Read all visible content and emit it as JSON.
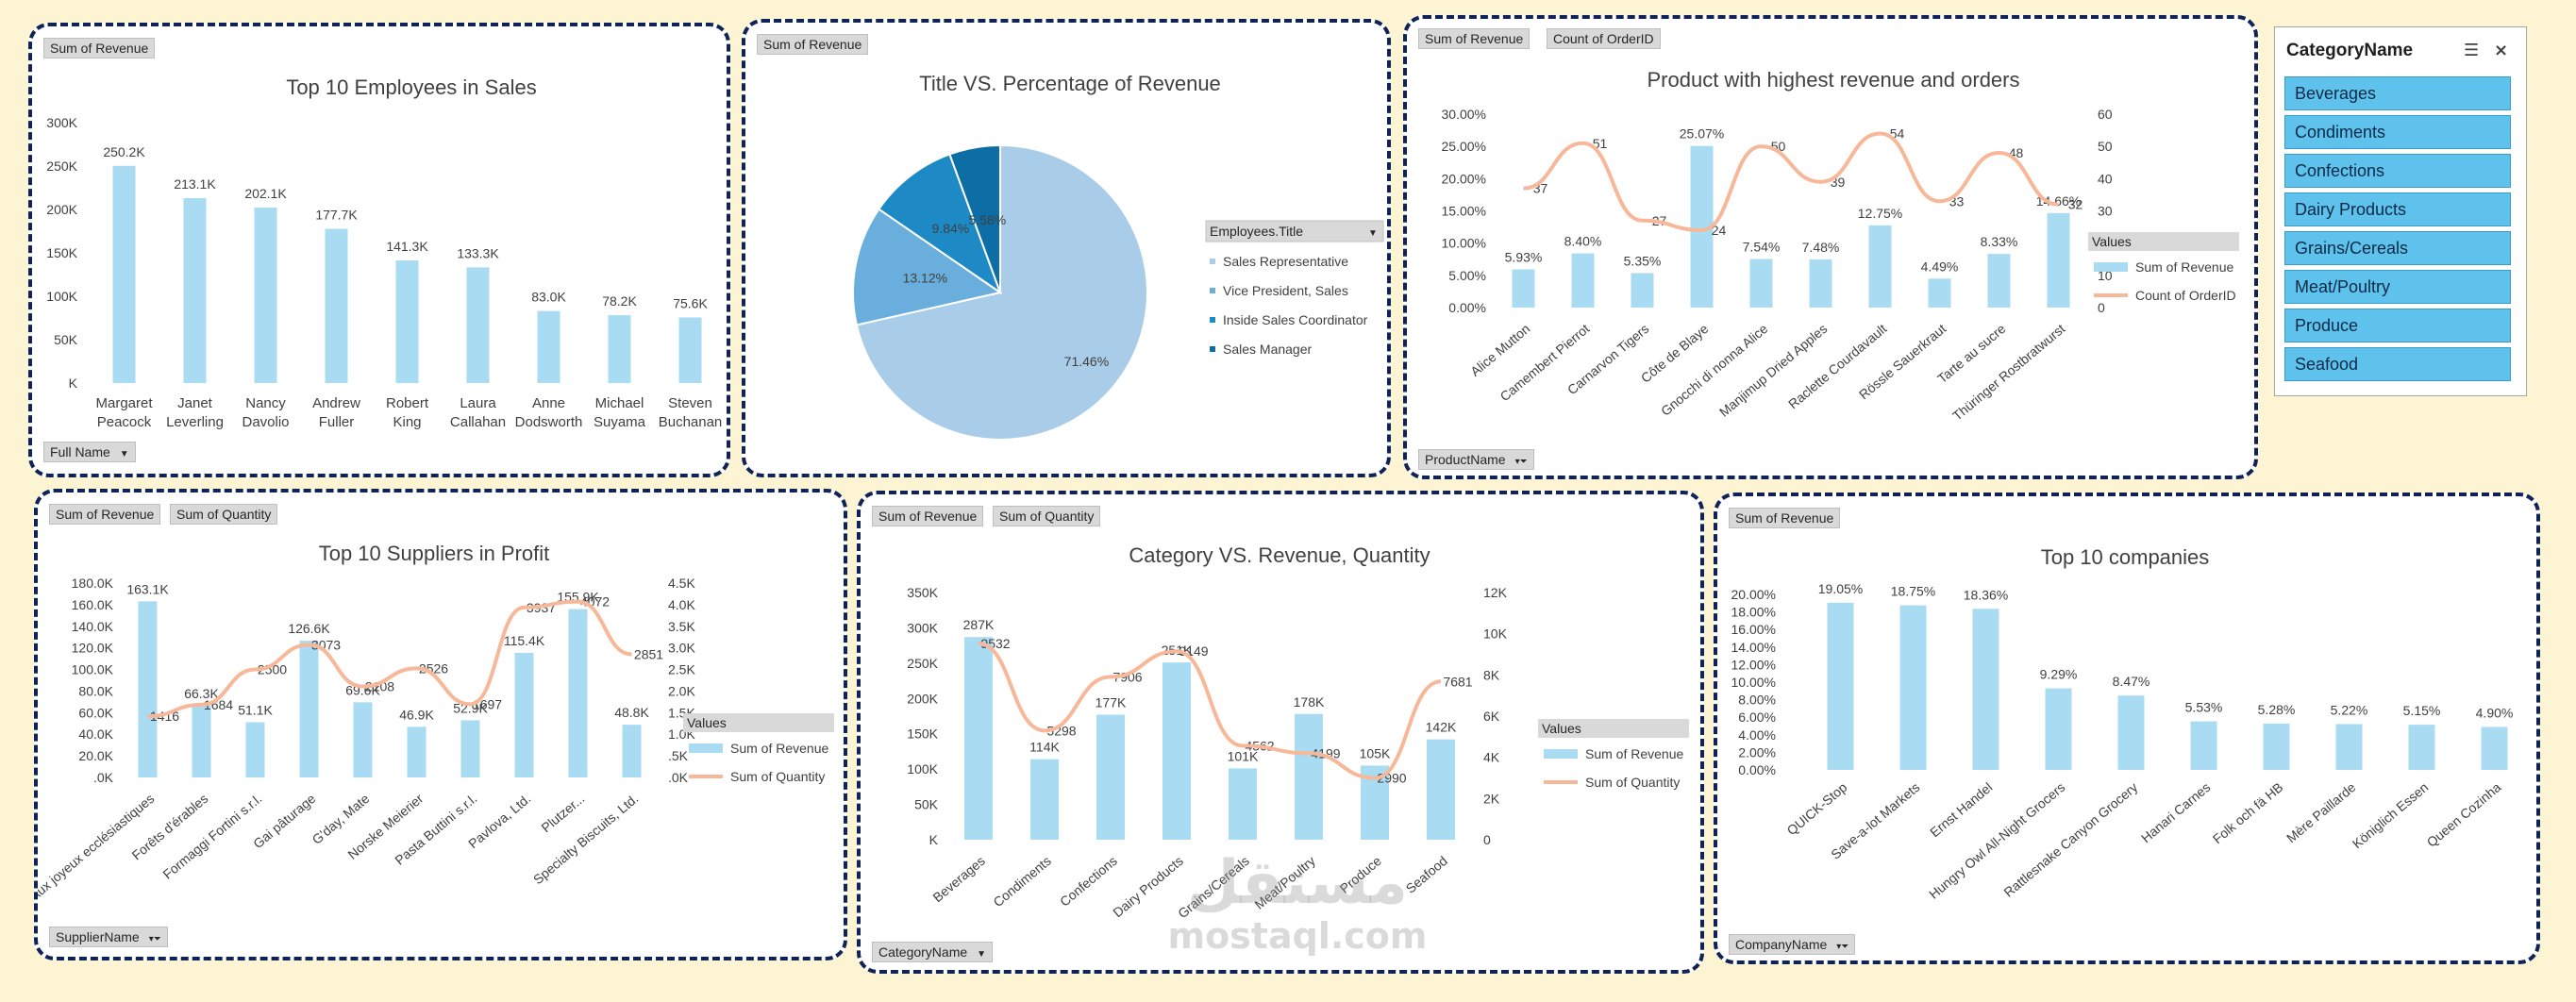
{
  "colors": {
    "bar": "#a9dcf2",
    "line": "#f7b899",
    "panel_border": "#0f2357",
    "background": "#fdf4d4",
    "slicer_item": "#5ec2ec",
    "pie": [
      "#a9cde9",
      "#6aaedd",
      "#1e8ac5",
      "#0c6ea5"
    ]
  },
  "charts": {
    "employees": {
      "field_buttons": [
        "Sum of Revenue"
      ],
      "axis_button": "Full Name",
      "chart_data": {
        "type": "bar",
        "title": "Top 10 Employees in Sales",
        "categories": [
          [
            "Margaret",
            "Peacock"
          ],
          [
            "Janet",
            "Leverling"
          ],
          [
            "Nancy",
            "Davolio"
          ],
          [
            "Andrew",
            "Fuller"
          ],
          [
            "Robert",
            "King"
          ],
          [
            "Laura",
            "Callahan"
          ],
          [
            "Anne",
            "Dodsworth"
          ],
          [
            "Michael",
            "Suyama"
          ],
          [
            "Steven",
            "Buchanan"
          ]
        ],
        "values": [
          250.2,
          213.1,
          202.1,
          177.7,
          141.3,
          133.3,
          83.0,
          78.2,
          75.6
        ],
        "data_labels": [
          "250.2K",
          "213.1K",
          "202.1K",
          "177.7K",
          "141.3K",
          "133.3K",
          "83.0K",
          "78.2K",
          "75.6K"
        ],
        "ylim": [
          0,
          300
        ],
        "yticks": [
          "K",
          "50K",
          "100K",
          "150K",
          "200K",
          "250K",
          "300K"
        ]
      }
    },
    "titles": {
      "field_buttons": [
        "Sum of Revenue"
      ],
      "chart_data": {
        "type": "pie",
        "title": "Title VS. Percentage of Revenue",
        "legend_title": "Employees.Title",
        "categories": [
          "Sales Representative",
          "Vice President, Sales",
          "Inside Sales Coordinator",
          "Sales Manager"
        ],
        "values": [
          71.46,
          13.12,
          9.84,
          5.58
        ],
        "data_labels": [
          "71.46%",
          "13.12%",
          "9.84%",
          "5.58%"
        ]
      }
    },
    "products": {
      "field_buttons": [
        "Sum of Revenue",
        "Count of OrderID"
      ],
      "axis_button": "ProductName",
      "legend_title": "Values",
      "chart_data": {
        "type": "bar",
        "title": "Product with highest revenue and orders",
        "categories": [
          "Alice Mutton",
          "Camembert Pierrot",
          "Carnarvon Tigers",
          "Côte de Blaye",
          "Gnocchi di nonna Alice",
          "Manjimup Dried Apples",
          "Raclette Courdavault",
          "Rössle Sauerkraut",
          "Tarte au sucre",
          "Thüringer Rostbratwurst"
        ],
        "series": [
          {
            "name": "Sum of Revenue",
            "type": "bar",
            "values": [
              5.93,
              8.4,
              5.35,
              25.07,
              7.54,
              7.48,
              12.75,
              4.49,
              8.33,
              14.66
            ],
            "data_labels": [
              "5.93%",
              "8.40%",
              "5.35%",
              "25.07%",
              "7.54%",
              "7.48%",
              "12.75%",
              "4.49%",
              "8.33%",
              "14.66%"
            ]
          },
          {
            "name": "Count of OrderID",
            "type": "line",
            "values": [
              37,
              51,
              27,
              24,
              50,
              39,
              54,
              33,
              48,
              32
            ],
            "data_labels": [
              "37",
              "51",
              "27",
              "24",
              "50",
              "39",
              "54",
              "33",
              "48",
              "32"
            ]
          }
        ],
        "ylim": [
          0,
          30
        ],
        "yticks": [
          "0.00%",
          "5.00%",
          "10.00%",
          "15.00%",
          "20.00%",
          "25.00%",
          "30.00%"
        ],
        "y2lim": [
          0,
          60
        ],
        "y2ticks": [
          "0",
          "10",
          "20",
          "30",
          "40",
          "50",
          "60"
        ]
      }
    },
    "suppliers": {
      "field_buttons": [
        "Sum of Revenue",
        "Sum of Quantity"
      ],
      "axis_button": "SupplierName",
      "legend_title": "Values",
      "chart_data": {
        "type": "bar",
        "title": "Top 10 Suppliers in Profit",
        "categories": [
          "Aux joyeux ecclésiastiques",
          "Forêts d'érables",
          "Formaggi Fortini s.r.l.",
          "Gai pâturage",
          "G'day, Mate",
          "Norske Meierier",
          "Pasta Buttini s.r.l.",
          "Pavlova, Ltd.",
          "Plutzer...",
          "Specialty Biscuits, Ltd."
        ],
        "series": [
          {
            "name": "Sum of Revenue",
            "type": "bar",
            "values": [
              163.1,
              66.3,
              51.1,
              126.6,
              69.6,
              46.9,
              52.9,
              115.4,
              155.9,
              48.8
            ],
            "data_labels": [
              "163.1K",
              "66.3K",
              "51.1K",
              "126.6K",
              "69.6K",
              "46.9K",
              "52.9K",
              "115.4K",
              "155.9K",
              "48.8K"
            ]
          },
          {
            "name": "Sum of Quantity",
            "type": "line",
            "values": [
              1416,
              1684,
              2500,
              3073,
              2108,
              2526,
              1697,
              3937,
              4072,
              2851
            ],
            "data_labels": [
              "1416",
              "1684",
              "2500",
              "3073",
              "2108",
              "2526",
              "1697",
              "3937",
              "4072",
              "2851"
            ]
          }
        ],
        "ylim": [
          0,
          180
        ],
        "yticks": [
          ".0K",
          "20.0K",
          "40.0K",
          "60.0K",
          "80.0K",
          "100.0K",
          "120.0K",
          "140.0K",
          "160.0K",
          "180.0K"
        ],
        "y2lim": [
          0,
          4500
        ],
        "y2ticks": [
          ".0K",
          ".5K",
          "1.0K",
          "1.5K",
          "2.0K",
          "2.5K",
          "3.0K",
          "3.5K",
          "4.0K",
          "4.5K"
        ]
      }
    },
    "categories": {
      "field_buttons": [
        "Sum of Revenue",
        "Sum of Quantity"
      ],
      "axis_button": "CategoryName",
      "legend_title": "Values",
      "chart_data": {
        "type": "bar",
        "title": "Category VS. Revenue, Quantity",
        "categories": [
          "Beverages",
          "Condiments",
          "Confections",
          "Dairy Products",
          "Grains/Cereals",
          "Meat/Poultry",
          "Produce",
          "Seafood"
        ],
        "series": [
          {
            "name": "Sum of Revenue",
            "type": "bar",
            "values": [
              287,
              114,
              177,
              251,
              101,
              178,
              105,
              142
            ],
            "data_labels": [
              "287K",
              "114K",
              "177K",
              "251K",
              "101K",
              "178K",
              "105K",
              "142K"
            ]
          },
          {
            "name": "Sum of Quantity",
            "type": "line",
            "values": [
              9532,
              5298,
              7906,
              9149,
              4562,
              4199,
              2990,
              7681
            ],
            "data_labels": [
              "9532",
              "5298",
              "7906",
              "9149",
              "4562",
              "4199",
              "2990",
              "7681"
            ]
          }
        ],
        "ylim": [
          0,
          350
        ],
        "yticks": [
          "K",
          "50K",
          "100K",
          "150K",
          "200K",
          "250K",
          "300K",
          "350K"
        ],
        "y2lim": [
          0,
          12000
        ],
        "y2ticks": [
          "0",
          "2K",
          "4K",
          "6K",
          "8K",
          "10K",
          "12K"
        ]
      }
    },
    "companies": {
      "field_buttons": [
        "Sum of Revenue"
      ],
      "axis_button": "CompanyName",
      "chart_data": {
        "type": "bar",
        "title": "Top 10 companies",
        "categories": [
          "QUICK-Stop",
          "Save-a-lot Markets",
          "Ernst Handel",
          "Hungry Owl All-Night Grocers",
          "Rattlesnake Canyon Grocery",
          "Hanari Carnes",
          "Folk och fä HB",
          "Mère Paillarde",
          "Königlich Essen",
          "Queen Cozinha"
        ],
        "values": [
          19.05,
          18.75,
          18.36,
          9.29,
          8.47,
          5.53,
          5.28,
          5.22,
          5.15,
          4.9
        ],
        "data_labels": [
          "19.05%",
          "18.75%",
          "18.36%",
          "9.29%",
          "8.47%",
          "5.53%",
          "5.28%",
          "5.22%",
          "5.15%",
          "4.90%"
        ],
        "ylim": [
          0,
          20
        ],
        "yticks": [
          "0.00%",
          "2.00%",
          "4.00%",
          "6.00%",
          "8.00%",
          "10.00%",
          "12.00%",
          "14.00%",
          "16.00%",
          "18.00%",
          "20.00%"
        ]
      }
    }
  },
  "slicer": {
    "title": "CategoryName",
    "multiselect_icon": "multi-select-icon",
    "clear_filter_icon": "clear-filter-icon",
    "items": [
      "Beverages",
      "Condiments",
      "Confections",
      "Dairy Products",
      "Grains/Cereals",
      "Meat/Poultry",
      "Produce",
      "Seafood"
    ]
  },
  "watermark": {
    "arabic": "مستقل",
    "latin": "mostaql.com"
  }
}
